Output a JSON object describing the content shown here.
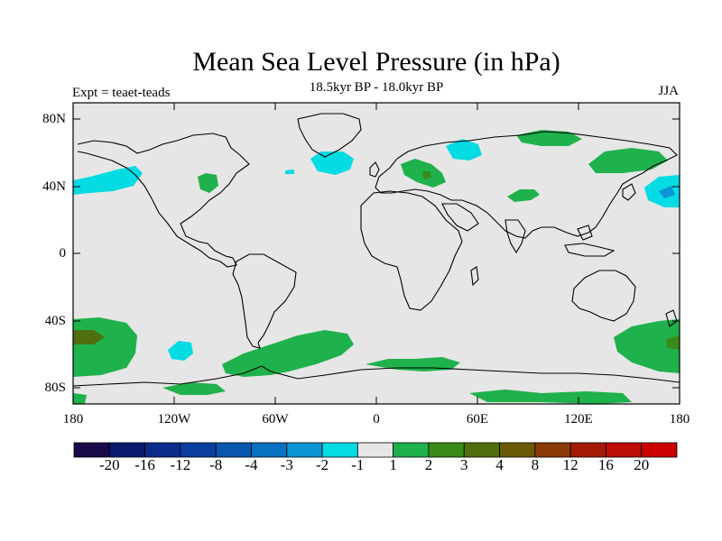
{
  "title": "Mean Sea Level Pressure (in hPa)",
  "subtitle": "18.5kyr BP - 18.0kyr BP",
  "experiment": "Expt = teaet-teads",
  "season": "JJA",
  "axes": {
    "lat_ticks": [
      "80N",
      "40N",
      "0",
      "40S",
      "80S"
    ],
    "lon_ticks": [
      "180",
      "120W",
      "60W",
      "0",
      "60E",
      "120E",
      "180"
    ]
  },
  "colorbar": {
    "labels": [
      "-20",
      "-16",
      "-12",
      "-8",
      "-4",
      "-3",
      "-2",
      "-1",
      "1",
      "2",
      "3",
      "4",
      "8",
      "12",
      "16",
      "20"
    ],
    "colors": [
      "#1a0a4a",
      "#0c1a6e",
      "#0b2c8a",
      "#0b3e9e",
      "#0a56ad",
      "#0a72c0",
      "#0b95d4",
      "#05dbe3",
      "#e6e6e6",
      "#1fb14c",
      "#3a8a1a",
      "#4f6e0e",
      "#6a5a08",
      "#8a3a06",
      "#a41a04",
      "#bb0c06",
      "#cc0000"
    ]
  },
  "colors": {
    "land_background": "#e6e6e6",
    "positive_1_2": "#1fb14c",
    "positive_2_3": "#3a8a1a",
    "positive_3_4": "#4f6e0e",
    "negative_1_2": "#05dbe3",
    "negative_2_3": "#0b95d4"
  }
}
